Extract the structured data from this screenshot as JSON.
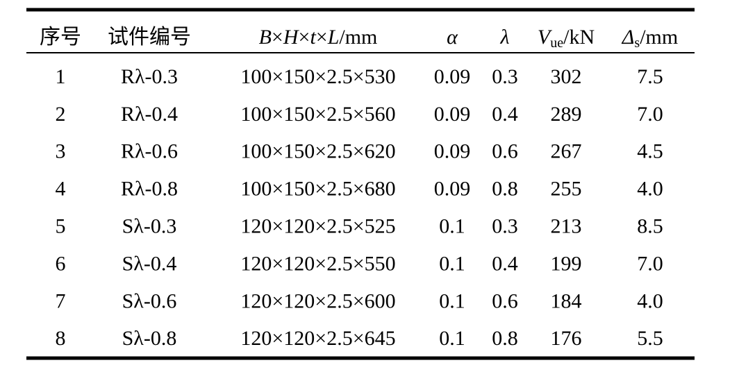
{
  "table": {
    "header": [
      [
        {
          "text": "序号",
          "style": "n"
        }
      ],
      [
        {
          "text": "试件编号",
          "style": "n"
        }
      ],
      [
        {
          "text": "B",
          "style": "i"
        },
        {
          "text": "×",
          "style": "n"
        },
        {
          "text": "H",
          "style": "i"
        },
        {
          "text": "×",
          "style": "n"
        },
        {
          "text": "t",
          "style": "i"
        },
        {
          "text": "×",
          "style": "n"
        },
        {
          "text": "L",
          "style": "i"
        },
        {
          "text": "/mm",
          "style": "n"
        }
      ],
      [
        {
          "text": "α",
          "style": "i"
        }
      ],
      [
        {
          "text": "λ",
          "style": "i"
        }
      ],
      [
        {
          "text": "V",
          "style": "i"
        },
        {
          "text": "ue",
          "style": "sub"
        },
        {
          "text": "/kN",
          "style": "n"
        }
      ],
      [
        {
          "text": "Δ",
          "style": "i"
        },
        {
          "text": "s",
          "style": "sub"
        },
        {
          "text": "/mm",
          "style": "n"
        }
      ]
    ],
    "rows": [
      [
        "1",
        "Rλ-0.3",
        "100×150×2.5×530",
        "0.09",
        "0.3",
        "302",
        "7.5"
      ],
      [
        "2",
        "Rλ-0.4",
        "100×150×2.5×560",
        "0.09",
        "0.4",
        "289",
        "7.0"
      ],
      [
        "3",
        "Rλ-0.6",
        "100×150×2.5×620",
        "0.09",
        "0.6",
        "267",
        "4.5"
      ],
      [
        "4",
        "Rλ-0.8",
        "100×150×2.5×680",
        "0.09",
        "0.8",
        "255",
        "4.0"
      ],
      [
        "5",
        "Sλ-0.3",
        "120×120×2.5×525",
        "0.1",
        "0.3",
        "213",
        "8.5"
      ],
      [
        "6",
        "Sλ-0.4",
        "120×120×2.5×550",
        "0.1",
        "0.4",
        "199",
        "7.0"
      ],
      [
        "7",
        "Sλ-0.6",
        "120×120×2.5×600",
        "0.1",
        "0.6",
        "184",
        "4.0"
      ],
      [
        "8",
        "Sλ-0.8",
        "120×120×2.5×645",
        "0.1",
        "0.8",
        "176",
        "5.5"
      ]
    ]
  }
}
